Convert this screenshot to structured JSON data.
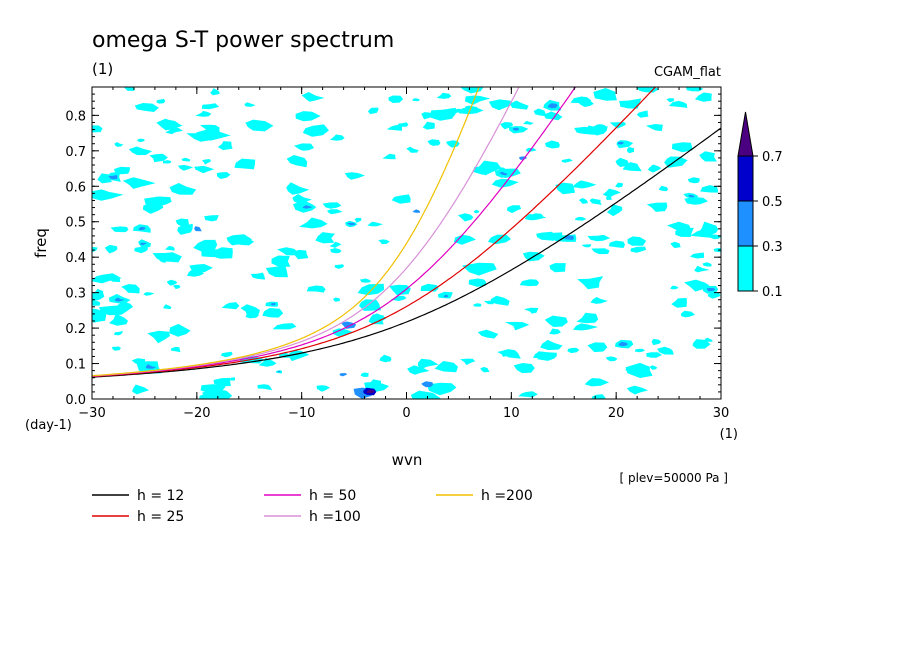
{
  "chart_data": {
    "type": "contour",
    "title": "omega S-T power spectrum",
    "title_unit": "(1)",
    "experiment": "CGAM_flat",
    "xlabel": "wvn",
    "x_unit": "(1)",
    "ylabel": "freq",
    "y_unit": "(day-1)",
    "xlim": [
      -30,
      30
    ],
    "ylim": [
      0,
      0.88
    ],
    "x_ticks": [
      -30,
      -20,
      -10,
      0,
      10,
      20,
      30
    ],
    "x_tick_labels": [
      "−30",
      "−20",
      "−10",
      "0",
      "10",
      "20",
      "30"
    ],
    "y_ticks": [
      0.0,
      0.1,
      0.2,
      0.3,
      0.4,
      0.5,
      0.6,
      0.7,
      0.8
    ],
    "y_tick_labels": [
      "0.0",
      "0.1",
      "0.2",
      "0.3",
      "0.4",
      "0.5",
      "0.6",
      "0.7",
      "0.8"
    ],
    "annotation": "[ plev=50000 Pa ]",
    "colorbar": {
      "levels": [
        "0.1",
        "0.3",
        "0.5",
        "0.7"
      ],
      "colors": [
        "#00ffff",
        "#1e90ff",
        "#0000cd",
        "#4b0082"
      ]
    },
    "series": [
      {
        "name": "h = 12",
        "color": "#000000",
        "h": 12
      },
      {
        "name": "h = 25",
        "color": "#e00000",
        "h": 25
      },
      {
        "name": "h = 50",
        "color": "#e000c0",
        "h": 50
      },
      {
        "name": "h =100",
        "color": "#d890d8",
        "h": 100
      },
      {
        "name": "h =200",
        "color": "#f0c000",
        "h": 200
      }
    ],
    "grid": false
  }
}
